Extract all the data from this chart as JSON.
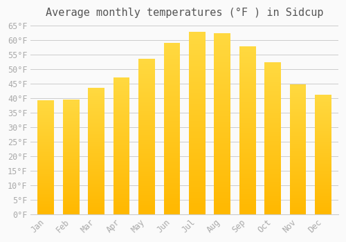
{
  "title": "Average monthly temperatures (°F ) in Sidcup",
  "months": [
    "Jan",
    "Feb",
    "Mar",
    "Apr",
    "May",
    "Jun",
    "Jul",
    "Aug",
    "Sep",
    "Oct",
    "Nov",
    "Dec"
  ],
  "values": [
    39.2,
    39.6,
    43.5,
    47.1,
    53.6,
    59.0,
    62.8,
    62.4,
    57.9,
    52.3,
    44.8,
    41.2
  ],
  "bar_color_top": "#FFC107",
  "bar_color_bottom": "#FFB300",
  "background_color": "#FAFAFA",
  "grid_color": "#CCCCCC",
  "text_color": "#AAAAAA",
  "ylim": [
    0,
    65
  ],
  "yticks": [
    0,
    5,
    10,
    15,
    20,
    25,
    30,
    35,
    40,
    45,
    50,
    55,
    60,
    65
  ],
  "title_fontsize": 11,
  "tick_fontsize": 8.5
}
